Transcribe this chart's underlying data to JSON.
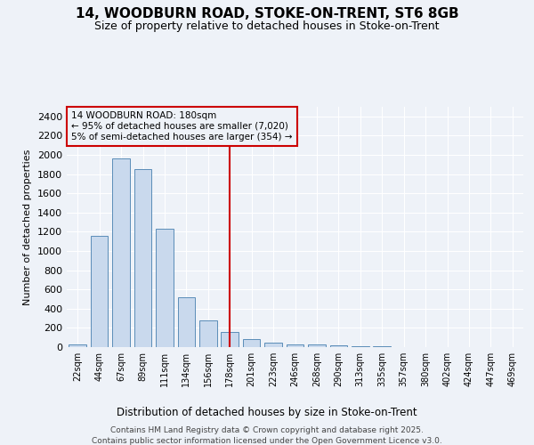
{
  "title1": "14, WOODBURN ROAD, STOKE-ON-TRENT, ST6 8GB",
  "title2": "Size of property relative to detached houses in Stoke-on-Trent",
  "xlabel": "Distribution of detached houses by size in Stoke-on-Trent",
  "ylabel": "Number of detached properties",
  "categories": [
    "22sqm",
    "44sqm",
    "67sqm",
    "89sqm",
    "111sqm",
    "134sqm",
    "156sqm",
    "178sqm",
    "201sqm",
    "223sqm",
    "246sqm",
    "268sqm",
    "290sqm",
    "313sqm",
    "335sqm",
    "357sqm",
    "380sqm",
    "402sqm",
    "424sqm",
    "447sqm",
    "469sqm"
  ],
  "values": [
    25,
    1160,
    1960,
    1850,
    1230,
    515,
    275,
    155,
    85,
    45,
    30,
    30,
    18,
    8,
    5,
    3,
    3,
    2,
    2,
    2,
    2
  ],
  "bar_color": "#c9d9ed",
  "bar_edge_color": "#5b8db8",
  "vline_index": 7,
  "vline_color": "#cc0000",
  "annotation_title": "14 WOODBURN ROAD: 180sqm",
  "annotation_line1": "← 95% of detached houses are smaller (7,020)",
  "annotation_line2": "5% of semi-detached houses are larger (354) →",
  "annotation_box_color": "#cc0000",
  "footer1": "Contains HM Land Registry data © Crown copyright and database right 2025.",
  "footer2": "Contains public sector information licensed under the Open Government Licence v3.0.",
  "ylim": [
    0,
    2500
  ],
  "yticks": [
    0,
    200,
    400,
    600,
    800,
    1000,
    1200,
    1400,
    1600,
    1800,
    2000,
    2200,
    2400
  ],
  "background_color": "#eef2f8",
  "grid_color": "#ffffff"
}
